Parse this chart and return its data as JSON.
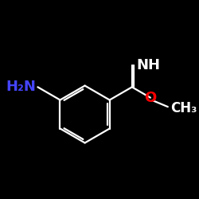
{
  "background_color": "#000000",
  "bond_color": "#ffffff",
  "h2n_color": "#4444ff",
  "nh_color": "#ffffff",
  "o_color": "#ff0000",
  "figsize": [
    2.5,
    2.5
  ],
  "dpi": 100,
  "xlim": [
    0,
    10
  ],
  "ylim": [
    0,
    10
  ]
}
